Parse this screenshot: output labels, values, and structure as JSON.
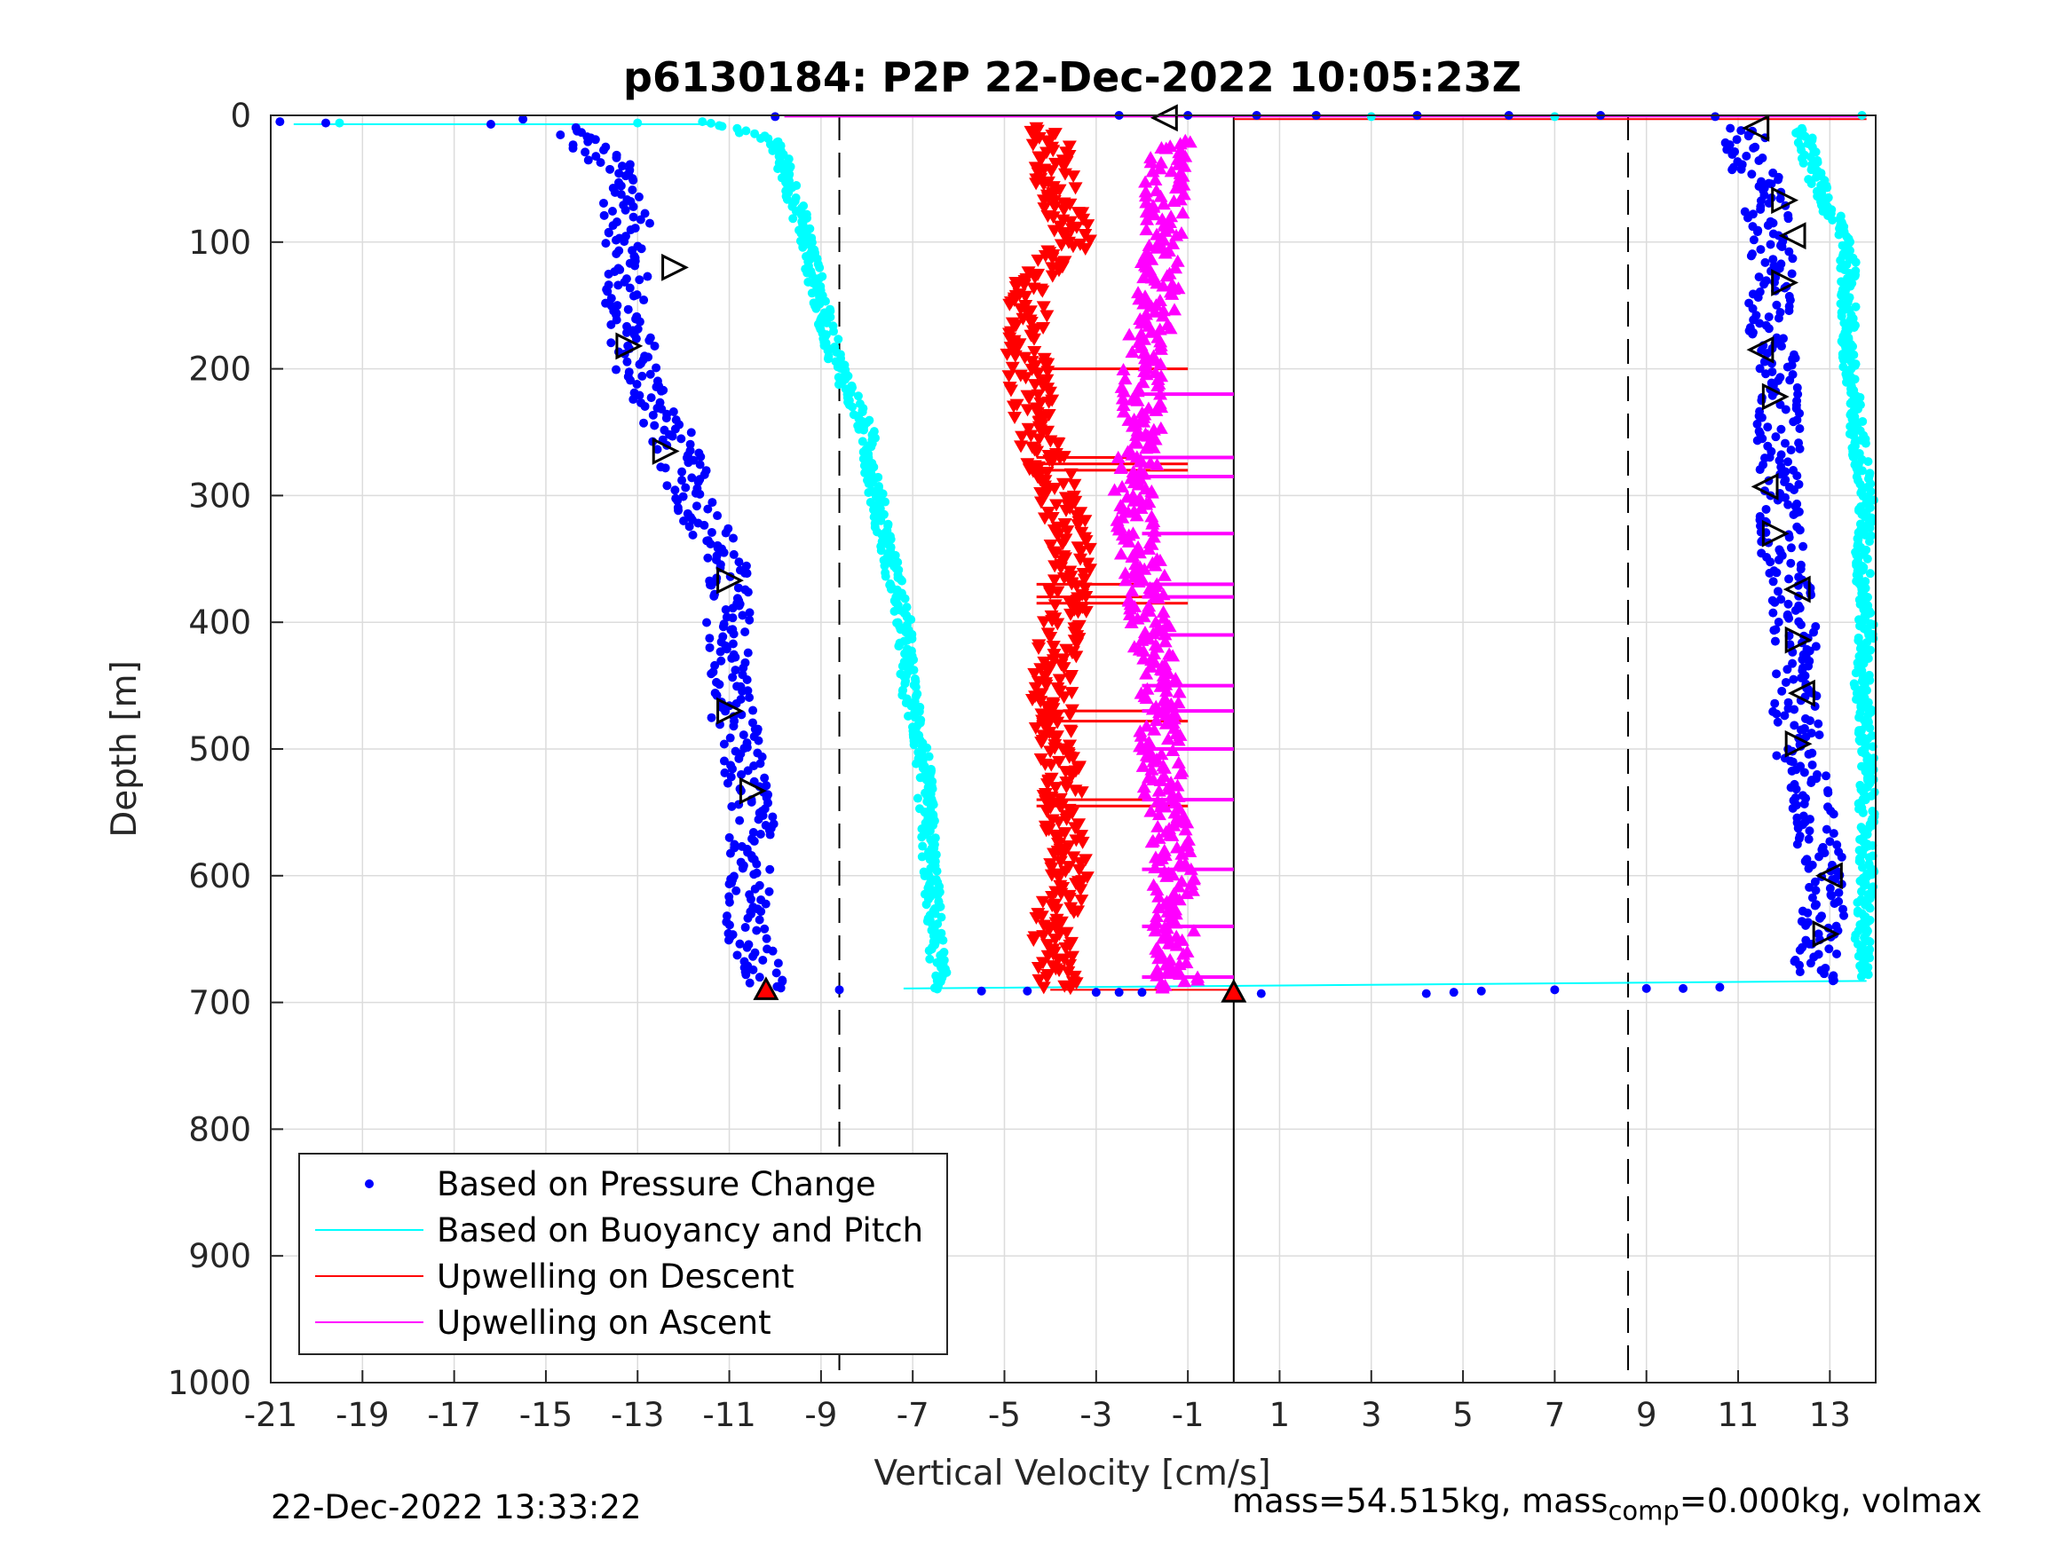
{
  "chart_data": {
    "type": "scatter",
    "title": "p6130184: P2P 22-Dec-2022 10:05:23Z",
    "xlabel": "Vertical Velocity [cm/s]",
    "ylabel": "Depth [m]",
    "xlim": [
      -21,
      14
    ],
    "ylim": [
      0,
      1000
    ],
    "y_reversed": true,
    "grid": true,
    "xticks": [
      "-21",
      "-19",
      "-17",
      "-15",
      "-13",
      "-11",
      "-9",
      "-7",
      "-5",
      "-3",
      "-1",
      "1",
      "3",
      "5",
      "7",
      "9",
      "11",
      "13"
    ],
    "yticks": [
      "0",
      "100",
      "200",
      "300",
      "400",
      "500",
      "600",
      "700",
      "800",
      "900",
      "1000"
    ],
    "reference_lines": {
      "dashed_x": [
        -8.6,
        8.6
      ],
      "solid_x": [
        0
      ]
    },
    "legend_position": "bottom-left",
    "legend": [
      {
        "name": "Based on Pressure Change",
        "color": "#0000ff",
        "style": "dot"
      },
      {
        "name": "Based on Buoyancy and Pitch",
        "color": "#00ffff",
        "style": "line"
      },
      {
        "name": "Upwelling on Descent",
        "color": "#ff0000",
        "style": "line"
      },
      {
        "name": "Upwelling on Ascent",
        "color": "#ff00ff",
        "style": "line"
      }
    ],
    "series": [
      {
        "name": "Based on Pressure Change",
        "color": "#0000ff",
        "role": "descent",
        "depth": [
          10,
          50,
          100,
          150,
          200,
          250,
          300,
          350,
          400,
          450,
          500,
          550,
          600,
          650,
          690
        ],
        "velocity": [
          -14.5,
          -13.3,
          -13.2,
          -13.3,
          -13.0,
          -12.3,
          -11.8,
          -11.1,
          -11.0,
          -11.0,
          -10.8,
          -10.5,
          -10.5,
          -10.6,
          -10.2
        ]
      },
      {
        "name": "Based on Pressure Change",
        "color": "#0000ff",
        "role": "ascent",
        "depth": [
          10,
          50,
          100,
          150,
          200,
          250,
          300,
          350,
          400,
          450,
          500,
          550,
          600,
          650,
          685
        ],
        "velocity": [
          11.1,
          11.4,
          11.8,
          11.7,
          11.8,
          11.9,
          11.9,
          12.0,
          12.2,
          12.2,
          12.3,
          12.6,
          12.9,
          12.8,
          12.6
        ]
      },
      {
        "name": "Based on Buoyancy and Pitch",
        "color": "#00ffff",
        "role": "descent",
        "depth": [
          5,
          20,
          50,
          100,
          150,
          190,
          250,
          300,
          350,
          400,
          450,
          500,
          550,
          600,
          650,
          690
        ],
        "velocity": [
          -11.5,
          -10.0,
          -9.7,
          -9.3,
          -9.0,
          -8.7,
          -8.0,
          -7.8,
          -7.5,
          -7.2,
          -7.1,
          -6.8,
          -6.7,
          -6.6,
          -6.5,
          -6.4
        ]
      },
      {
        "name": "Based on Buoyancy and Pitch",
        "color": "#00ffff",
        "role": "ascent",
        "depth": [
          10,
          40,
          70,
          100,
          150,
          200,
          250,
          300,
          350,
          400,
          450,
          500,
          550,
          600,
          650,
          680
        ],
        "velocity": [
          12.4,
          12.6,
          12.9,
          13.4,
          13.4,
          13.4,
          13.6,
          13.8,
          13.7,
          13.8,
          13.7,
          13.8,
          13.8,
          13.8,
          13.7,
          13.7
        ]
      },
      {
        "name": "Upwelling on Descent",
        "color": "#ff0000",
        "depth": [
          10,
          50,
          100,
          130,
          150,
          200,
          250,
          300,
          350,
          400,
          450,
          500,
          550,
          600,
          650,
          690
        ],
        "velocity": [
          -4.0,
          -3.9,
          -3.5,
          -4.3,
          -4.5,
          -4.5,
          -4.3,
          -3.8,
          -3.5,
          -3.7,
          -4.0,
          -3.8,
          -3.7,
          -3.6,
          -4.0,
          -3.8
        ]
      },
      {
        "name": "Upwelling on Ascent",
        "color": "#ff00ff",
        "depth": [
          20,
          50,
          100,
          150,
          200,
          250,
          300,
          350,
          400,
          450,
          500,
          550,
          600,
          650,
          690
        ],
        "velocity": [
          -1.3,
          -1.5,
          -1.5,
          -1.7,
          -2.0,
          -2.0,
          -2.2,
          -2.0,
          -1.8,
          -1.6,
          -1.6,
          -1.5,
          -1.3,
          -1.3,
          -1.2
        ]
      }
    ],
    "markers": {
      "left_triangles_descent": [
        [
          -12.2,
          120
        ],
        [
          -13.2,
          182
        ],
        [
          -12.4,
          265
        ],
        [
          -11.0,
          367
        ],
        [
          -11.0,
          470
        ],
        [
          -10.5,
          533
        ]
      ],
      "right_triangles_ascent": [
        [
          11.4,
          10
        ],
        [
          12.0,
          67
        ],
        [
          12.2,
          95
        ],
        [
          12.0,
          132
        ],
        [
          11.5,
          185
        ],
        [
          11.8,
          222
        ],
        [
          11.6,
          293
        ],
        [
          11.8,
          330
        ],
        [
          12.3,
          374
        ],
        [
          12.3,
          414
        ],
        [
          12.4,
          456
        ],
        [
          12.3,
          496
        ],
        [
          13.0,
          600
        ],
        [
          12.9,
          646
        ]
      ],
      "top_marker": [
        -1.5,
        2
      ],
      "bottom_markers": [
        [
          -10.2,
          690
        ],
        [
          0,
          692
        ]
      ]
    }
  },
  "footer": {
    "timestamp": "22-Dec-2022 13:33:22",
    "mass_text_a": "mass=54.515kg, mass",
    "mass_sub": "comp",
    "mass_text_b": "=0.000kg, volmax"
  }
}
